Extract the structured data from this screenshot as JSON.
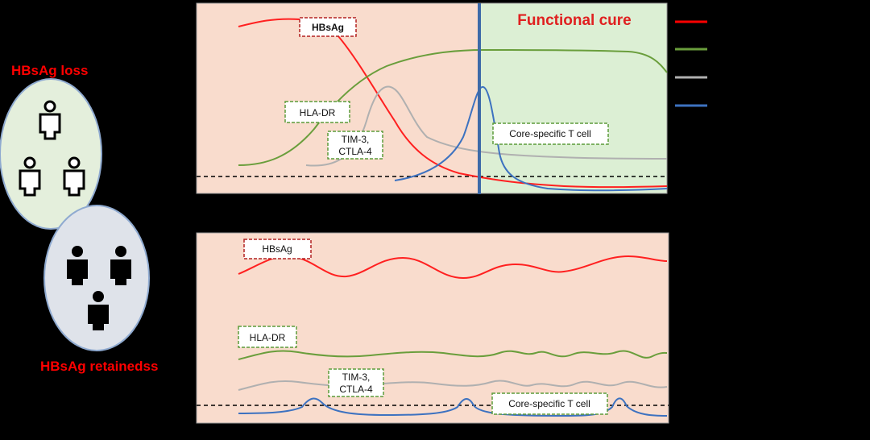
{
  "left": {
    "loss_label": "HBsAg loss",
    "retainer_label": "HBsAg retainedss",
    "colors": {
      "loss_ellipse": "#e4efdc",
      "retainer_ellipse": "#dfe3ea",
      "person_light": "#ffffff",
      "person_dark": "#000000"
    }
  },
  "top_panel": {
    "region_title": "Functional cure",
    "labels": {
      "hbsag": "HBsAg",
      "hla_dr": "HLA-DR",
      "tim3_line1": "TIM-3,",
      "tim3_line2": "CTLA-4",
      "core_t": "Core-specific T cell"
    },
    "colors": {
      "left_bg": "#f9dccd",
      "right_bg": "#dcefd4",
      "divider": "#3d6aa8"
    }
  },
  "bottom_panel": {
    "labels": {
      "hbsag": "HBsAg",
      "hla_dr": "HLA-DR",
      "tim3_line1": "TIM-3,",
      "tim3_line2": "CTLA-4",
      "core_t": "Core-specific T cell"
    },
    "colors": {
      "bg": "#f9dccd"
    }
  },
  "legend": {
    "entries": [
      {
        "color": "#ff0000"
      },
      {
        "color": "#6a9e3c"
      },
      {
        "color": "#b0b0b0"
      },
      {
        "color": "#3d72c0"
      }
    ]
  },
  "series_colors": {
    "hbsag": "#ff2020",
    "hla_dr": "#6a9e3c",
    "tim3": "#b0b0b0",
    "core_t": "#3d72c0"
  }
}
